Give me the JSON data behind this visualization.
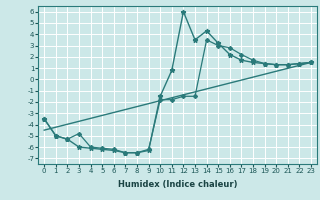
{
  "xlabel": "Humidex (Indice chaleur)",
  "bg_color": "#cce8e8",
  "grid_color": "#ffffff",
  "line_color": "#2a7a7a",
  "xlim": [
    -0.5,
    23.5
  ],
  "ylim": [
    -7.5,
    6.5
  ],
  "xticks": [
    0,
    1,
    2,
    3,
    4,
    5,
    6,
    7,
    8,
    9,
    10,
    11,
    12,
    13,
    14,
    15,
    16,
    17,
    18,
    19,
    20,
    21,
    22,
    23
  ],
  "yticks": [
    -7,
    -6,
    -5,
    -4,
    -3,
    -2,
    -1,
    0,
    1,
    2,
    3,
    4,
    5,
    6
  ],
  "series": [
    {
      "x": [
        0,
        1,
        2,
        3,
        4,
        5,
        6,
        7,
        8,
        9,
        10,
        11,
        12,
        13,
        14,
        15,
        16,
        17,
        18,
        19,
        20,
        21,
        22,
        23
      ],
      "y": [
        -3.5,
        -5.0,
        -5.3,
        -6.0,
        -6.1,
        -6.2,
        -6.3,
        -6.5,
        -6.5,
        -6.3,
        -1.5,
        0.8,
        6.0,
        3.5,
        4.3,
        3.2,
        2.2,
        1.7,
        1.5,
        1.4,
        1.3,
        1.3,
        1.4,
        1.5
      ],
      "marker": "*",
      "markersize": 3.5,
      "linewidth": 1.0,
      "zorder": 3
    },
    {
      "x": [
        0,
        1,
        2,
        3,
        4,
        5,
        6,
        7,
        8,
        9,
        10,
        11,
        12,
        13,
        14,
        15,
        16,
        17,
        18,
        19,
        20,
        21,
        22,
        23
      ],
      "y": [
        -3.5,
        -5.0,
        -5.3,
        -4.8,
        -6.0,
        -6.1,
        -6.2,
        -6.5,
        -6.5,
        -6.2,
        -1.8,
        -1.8,
        -1.5,
        -1.5,
        3.5,
        3.0,
        2.8,
        2.2,
        1.7,
        1.4,
        1.3,
        1.3,
        1.4,
        1.5
      ],
      "marker": "D",
      "markersize": 2.0,
      "linewidth": 0.9,
      "zorder": 2
    },
    {
      "x": [
        0,
        23
      ],
      "y": [
        -4.5,
        1.5
      ],
      "marker": null,
      "markersize": 0,
      "linewidth": 1.0,
      "zorder": 1
    }
  ]
}
